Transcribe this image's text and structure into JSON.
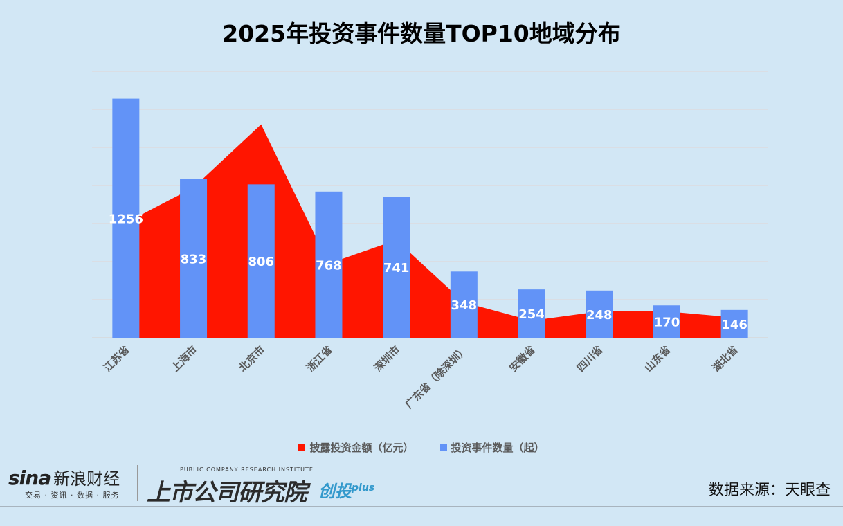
{
  "chart_data": {
    "type": "bar+area",
    "title": "2025年投资事件数量TOP10地域分布",
    "categories": [
      "江苏省",
      "上海市",
      "北京市",
      "浙江省",
      "深圳市",
      "广东省（除深圳）",
      "安徽省",
      "四川省",
      "山东省",
      "湖北省"
    ],
    "series": [
      {
        "name": "披露投资金额（亿元）",
        "type": "area",
        "color": "#ff1500",
        "values": [
          604,
          789,
          1121,
          390,
          513,
          186,
          90,
          138,
          138,
          107
        ]
      },
      {
        "name": "投资事件数量（起）",
        "type": "bar",
        "color": "#6293f7",
        "values": [
          1256,
          833,
          806,
          768,
          741,
          348,
          254,
          248,
          170,
          146
        ],
        "data_labels": true
      }
    ],
    "ylim": [
      0,
      1400
    ],
    "grid_step": 200,
    "grid": true,
    "y_tick_labels": false,
    "legend_position": "bottom"
  },
  "footer": {
    "sina_logo": "sina",
    "sina_name": "新浪财经",
    "sina_sub": "交易 · 资讯 · 数据 · 服务",
    "institute_en": "PUBLIC COMPANY RESEARCH INSTITUTE",
    "institute_cn": "上市公司研究院",
    "chuangtou": "创投",
    "plus": "plus",
    "source": "数据来源：天眼查"
  }
}
